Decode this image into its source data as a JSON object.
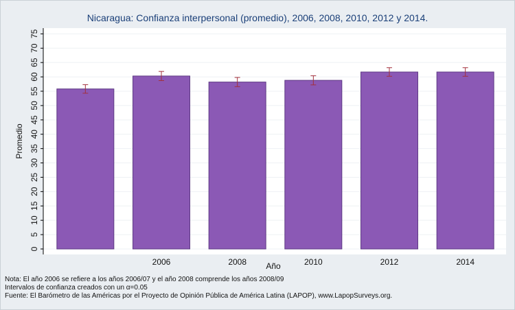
{
  "chart_data": {
    "type": "bar",
    "title": "Nicaragua: Confianza interpersonal (promedio), 2006, 2008, 2010, 2012 y 2014.",
    "xlabel": "Año",
    "ylabel": "Promedio",
    "categories": [
      "",
      "2006",
      "2008",
      "2010",
      "2012",
      "2014"
    ],
    "values": [
      55.8,
      60.3,
      58.2,
      58.8,
      61.7,
      61.7
    ],
    "ci_low": [
      54.3,
      58.7,
      56.6,
      57.2,
      60.2,
      60.2
    ],
    "ci_high": [
      57.3,
      61.9,
      59.8,
      60.4,
      63.2,
      63.2
    ],
    "yticks": [
      0,
      5,
      10,
      15,
      20,
      25,
      30,
      35,
      40,
      45,
      50,
      55,
      60,
      65,
      70,
      75
    ],
    "ylim": [
      0,
      77
    ],
    "grid": true,
    "colors": {
      "bar": "#8b59b5",
      "bar_edge": "#5e3a84",
      "error_bar": "#a3303c",
      "title": "#1a3f78",
      "plot_background": "#ffffff",
      "page_background": "#eaeef2"
    }
  },
  "notes": {
    "line1": "Nota: El año 2006 se refiere a los años 2006/07 y el año 2008 comprende los años 2008/09",
    "line2": "Intervalos de confianza creados con un α=0.05",
    "line3": "Fuente: El Barómetro de las Américas por el Proyecto de Opinión Pública de América Latina (LAPOP), www.LapopSurveys.org."
  }
}
